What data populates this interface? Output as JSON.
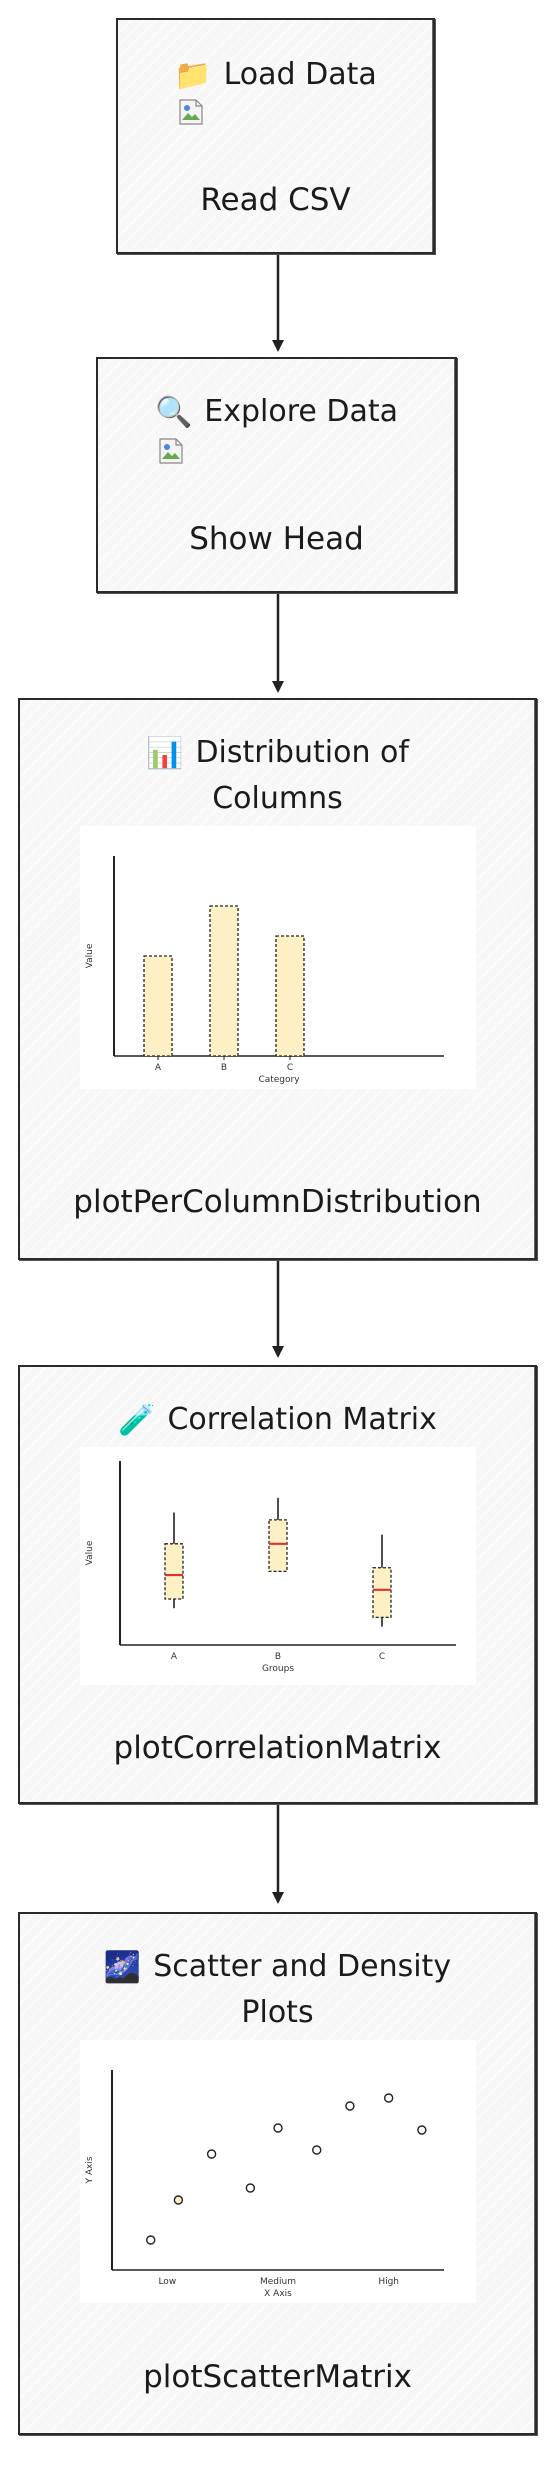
{
  "nodes": [
    {
      "id": "load",
      "icon": "folder-icon",
      "emoji": "📁",
      "title": "Load Data",
      "label": "Read CSV"
    },
    {
      "id": "explore",
      "icon": "magnifier-icon",
      "emoji": "🔍",
      "title": "Explore Data",
      "label": "Show Head"
    },
    {
      "id": "dist",
      "icon": "bar-chart-icon",
      "emoji": "📊",
      "title_line1": "Distribution of",
      "title_line2": "Columns",
      "label": "plotPerColumnDistribution"
    },
    {
      "id": "corr",
      "icon": "test-tube-icon",
      "emoji": "🧪",
      "title": "Correlation Matrix",
      "label": "plotCorrelationMatrix"
    },
    {
      "id": "scatter",
      "icon": "galaxy-icon",
      "emoji": "🌌",
      "title_line1": "Scatter and Density",
      "title_line2": "Plots",
      "label": "plotScatterMatrix"
    }
  ],
  "colors": {
    "bar_fill": "#fdf0c4",
    "median": "#e03030",
    "stroke": "#222222"
  },
  "chart_data": [
    {
      "type": "bar",
      "categories": [
        "A",
        "B",
        "C"
      ],
      "values": [
        50,
        75,
        60
      ],
      "xlabel": "Category",
      "ylabel": "Value",
      "ylim": [
        0,
        100
      ],
      "grid": false
    },
    {
      "type": "box",
      "categories": [
        "A",
        "B",
        "C"
      ],
      "boxes": [
        {
          "whisker_low": 20,
          "q1": 25,
          "median": 38,
          "q3": 55,
          "whisker_high": 72
        },
        {
          "whisker_low": 40,
          "q1": 40,
          "median": 55,
          "q3": 68,
          "whisker_high": 80
        },
        {
          "whisker_low": 10,
          "q1": 15,
          "median": 30,
          "q3": 42,
          "whisker_high": 60
        }
      ],
      "xlabel": "Groups",
      "ylabel": "Value",
      "ylim": [
        0,
        100
      ],
      "grid": false
    },
    {
      "type": "scatter",
      "x_ticks": [
        "Low",
        "Medium",
        "High"
      ],
      "xlim": [
        0,
        6
      ],
      "ylim": [
        0,
        100
      ],
      "points": [
        {
          "x": 0.7,
          "y": 15
        },
        {
          "x": 1.2,
          "y": 35
        },
        {
          "x": 1.8,
          "y": 58
        },
        {
          "x": 2.5,
          "y": 41
        },
        {
          "x": 3.0,
          "y": 71
        },
        {
          "x": 3.7,
          "y": 60
        },
        {
          "x": 4.3,
          "y": 82
        },
        {
          "x": 5.0,
          "y": 86
        },
        {
          "x": 5.6,
          "y": 70
        }
      ],
      "highlight_index": 1,
      "xlabel": "X Axis",
      "ylabel": "Y Axis",
      "grid": false
    }
  ]
}
